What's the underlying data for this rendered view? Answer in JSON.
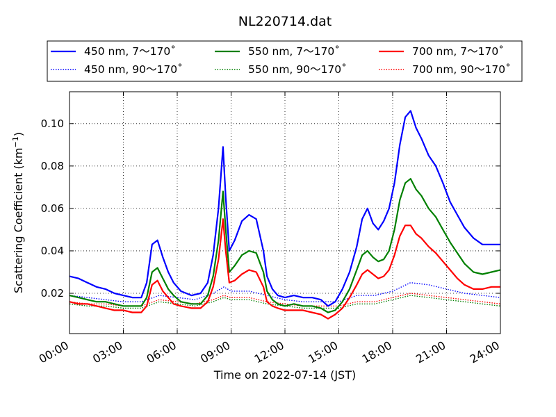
{
  "chart_data": {
    "type": "line",
    "title": "NL220714.dat",
    "xlabel": "Time on 2022-07-14 (JST)",
    "ylabel": "Scattering Coefficient (km",
    "ylabel_unit_sup": "−1",
    "ylabel_close": ")",
    "xlim": [
      0,
      24
    ],
    "ylim": [
      0.001,
      0.115
    ],
    "x_ticks": [
      0,
      3,
      6,
      9,
      12,
      15,
      18,
      21,
      24
    ],
    "x_tick_labels": [
      "00:00",
      "03:00",
      "06:00",
      "09:00",
      "12:00",
      "15:00",
      "18:00",
      "21:00",
      "24:00"
    ],
    "y_ticks": [
      0.02,
      0.04,
      0.06,
      0.08,
      0.1
    ],
    "y_tick_labels": [
      "0.02",
      "0.04",
      "0.06",
      "0.08",
      "0.10"
    ],
    "grid": true,
    "legend_position": "top, above plot",
    "series": [
      {
        "name": "450 nm, 7～170˚",
        "color": "#0000ff",
        "style": "solid",
        "x": [
          0,
          0.5,
          1,
          1.5,
          2,
          2.5,
          3,
          3.5,
          4,
          4.3,
          4.6,
          4.9,
          5.2,
          5.5,
          5.8,
          6.2,
          6.8,
          7.3,
          7.7,
          8,
          8.3,
          8.55,
          8.7,
          8.9,
          9.2,
          9.6,
          10,
          10.4,
          10.8,
          11,
          11.3,
          11.6,
          12,
          12.5,
          13,
          13.5,
          14,
          14.4,
          14.8,
          15.2,
          15.6,
          16,
          16.3,
          16.6,
          16.9,
          17.2,
          17.5,
          17.8,
          18.1,
          18.4,
          18.7,
          19,
          19.3,
          19.6,
          20,
          20.4,
          20.8,
          21.2,
          21.6,
          22,
          22.5,
          23,
          23.5,
          24
        ],
        "y": [
          0.028,
          0.027,
          0.025,
          0.023,
          0.022,
          0.02,
          0.019,
          0.018,
          0.018,
          0.025,
          0.043,
          0.045,
          0.037,
          0.03,
          0.025,
          0.021,
          0.019,
          0.02,
          0.025,
          0.038,
          0.06,
          0.089,
          0.065,
          0.04,
          0.045,
          0.054,
          0.057,
          0.055,
          0.04,
          0.028,
          0.022,
          0.019,
          0.018,
          0.019,
          0.018,
          0.018,
          0.017,
          0.014,
          0.016,
          0.022,
          0.03,
          0.042,
          0.055,
          0.06,
          0.053,
          0.05,
          0.054,
          0.06,
          0.072,
          0.09,
          0.103,
          0.106,
          0.098,
          0.093,
          0.085,
          0.08,
          0.072,
          0.063,
          0.057,
          0.051,
          0.046,
          0.043,
          0.043,
          0.043
        ]
      },
      {
        "name": "550 nm, 7～170˚",
        "color": "#008000",
        "style": "solid",
        "x": [
          0,
          0.5,
          1,
          1.5,
          2,
          2.5,
          3,
          3.5,
          4,
          4.3,
          4.6,
          4.9,
          5.2,
          5.5,
          5.8,
          6.2,
          6.8,
          7.3,
          7.7,
          8,
          8.3,
          8.55,
          8.7,
          8.9,
          9.2,
          9.6,
          10,
          10.4,
          10.8,
          11,
          11.3,
          11.6,
          12,
          12.5,
          13,
          13.5,
          14,
          14.4,
          14.8,
          15.2,
          15.6,
          16,
          16.3,
          16.6,
          16.9,
          17.2,
          17.5,
          17.8,
          18.1,
          18.4,
          18.7,
          19,
          19.3,
          19.6,
          20,
          20.4,
          20.8,
          21.2,
          21.6,
          22,
          22.5,
          23,
          23.5,
          24
        ],
        "y": [
          0.019,
          0.018,
          0.017,
          0.016,
          0.016,
          0.015,
          0.014,
          0.014,
          0.014,
          0.018,
          0.03,
          0.032,
          0.027,
          0.022,
          0.019,
          0.016,
          0.015,
          0.015,
          0.019,
          0.028,
          0.045,
          0.068,
          0.05,
          0.03,
          0.033,
          0.038,
          0.04,
          0.039,
          0.03,
          0.021,
          0.017,
          0.015,
          0.014,
          0.015,
          0.014,
          0.014,
          0.013,
          0.011,
          0.012,
          0.016,
          0.022,
          0.031,
          0.038,
          0.04,
          0.037,
          0.035,
          0.036,
          0.04,
          0.05,
          0.064,
          0.072,
          0.074,
          0.069,
          0.066,
          0.06,
          0.056,
          0.05,
          0.044,
          0.039,
          0.034,
          0.03,
          0.029,
          0.03,
          0.031
        ]
      },
      {
        "name": "700 nm, 7～170˚",
        "color": "#ff0000",
        "style": "solid",
        "x": [
          0,
          0.5,
          1,
          1.5,
          2,
          2.5,
          3,
          3.5,
          4,
          4.3,
          4.6,
          4.9,
          5.2,
          5.5,
          5.8,
          6.2,
          6.8,
          7.3,
          7.7,
          8,
          8.3,
          8.55,
          8.7,
          8.9,
          9.2,
          9.6,
          10,
          10.4,
          10.8,
          11,
          11.3,
          11.6,
          12,
          12.5,
          13,
          13.5,
          14,
          14.4,
          14.8,
          15.2,
          15.6,
          16,
          16.3,
          16.6,
          16.9,
          17.2,
          17.5,
          17.8,
          18.1,
          18.4,
          18.7,
          19,
          19.3,
          19.6,
          20,
          20.4,
          20.8,
          21.2,
          21.6,
          22,
          22.5,
          23,
          23.5,
          24
        ],
        "y": [
          0.016,
          0.015,
          0.015,
          0.014,
          0.013,
          0.012,
          0.012,
          0.011,
          0.011,
          0.014,
          0.024,
          0.026,
          0.021,
          0.018,
          0.015,
          0.014,
          0.013,
          0.013,
          0.016,
          0.023,
          0.036,
          0.055,
          0.04,
          0.025,
          0.026,
          0.029,
          0.031,
          0.03,
          0.023,
          0.016,
          0.014,
          0.013,
          0.012,
          0.012,
          0.012,
          0.011,
          0.01,
          0.008,
          0.01,
          0.013,
          0.018,
          0.024,
          0.029,
          0.031,
          0.029,
          0.027,
          0.028,
          0.031,
          0.038,
          0.047,
          0.052,
          0.052,
          0.048,
          0.046,
          0.042,
          0.039,
          0.035,
          0.031,
          0.027,
          0.024,
          0.022,
          0.022,
          0.023,
          0.023
        ]
      },
      {
        "name": "450 nm, 90～170˚",
        "color": "#0000ff",
        "style": "dotted",
        "x": [
          0,
          1,
          2,
          3,
          4,
          5,
          6,
          7,
          8,
          8.6,
          9,
          10,
          11,
          12,
          13,
          14,
          15,
          16,
          17,
          18,
          19,
          20,
          21,
          22,
          23,
          24
        ],
        "y": [
          0.019,
          0.018,
          0.017,
          0.016,
          0.016,
          0.019,
          0.018,
          0.017,
          0.02,
          0.023,
          0.021,
          0.021,
          0.019,
          0.017,
          0.016,
          0.016,
          0.016,
          0.019,
          0.019,
          0.021,
          0.025,
          0.024,
          0.022,
          0.02,
          0.019,
          0.018
        ]
      },
      {
        "name": "550 nm, 90～170˚",
        "color": "#008000",
        "style": "dotted",
        "x": [
          0,
          1,
          2,
          3,
          4,
          5,
          6,
          7,
          8,
          8.6,
          9,
          10,
          11,
          12,
          13,
          14,
          15,
          16,
          17,
          18,
          19,
          20,
          21,
          22,
          23,
          24
        ],
        "y": [
          0.015,
          0.014,
          0.014,
          0.013,
          0.013,
          0.016,
          0.015,
          0.014,
          0.016,
          0.018,
          0.017,
          0.017,
          0.015,
          0.014,
          0.013,
          0.013,
          0.013,
          0.015,
          0.015,
          0.017,
          0.019,
          0.018,
          0.017,
          0.016,
          0.015,
          0.014
        ]
      },
      {
        "name": "700 nm, 90～170˚",
        "color": "#ff0000",
        "style": "dotted",
        "x": [
          0,
          1,
          2,
          3,
          4,
          5,
          6,
          7,
          8,
          8.6,
          9,
          10,
          11,
          12,
          13,
          14,
          15,
          16,
          17,
          18,
          19,
          20,
          21,
          22,
          23,
          24
        ],
        "y": [
          0.016,
          0.015,
          0.015,
          0.014,
          0.014,
          0.017,
          0.016,
          0.015,
          0.017,
          0.019,
          0.018,
          0.018,
          0.016,
          0.015,
          0.014,
          0.014,
          0.014,
          0.016,
          0.016,
          0.018,
          0.02,
          0.019,
          0.018,
          0.017,
          0.016,
          0.015
        ]
      }
    ]
  }
}
